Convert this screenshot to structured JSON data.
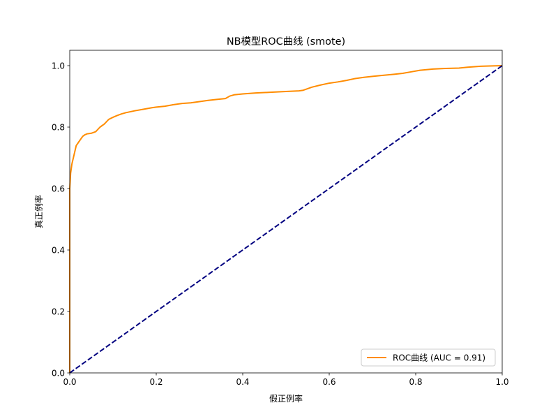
{
  "chart_data": {
    "type": "line",
    "title": "NB模型ROC曲线 (smote)",
    "xlabel": "假正例率",
    "ylabel": "真正例率",
    "xlim": [
      0.0,
      1.0
    ],
    "ylim": [
      0.0,
      1.05
    ],
    "xticks": [
      0.0,
      0.2,
      0.4,
      0.6,
      0.8,
      1.0
    ],
    "yticks": [
      0.0,
      0.2,
      0.4,
      0.6,
      0.8,
      1.0
    ],
    "xtick_labels": [
      "0.0",
      "0.2",
      "0.4",
      "0.6",
      "0.8",
      "1.0"
    ],
    "ytick_labels": [
      "0.0",
      "0.2",
      "0.4",
      "0.6",
      "0.8",
      "1.0"
    ],
    "grid": false,
    "legend_position": "lower-right",
    "series": [
      {
        "name": "ROC曲线 (AUC = 0.91)",
        "color": "#ff8c00",
        "style": "solid",
        "x": [
          0.0,
          0.0,
          0.002,
          0.005,
          0.01,
          0.015,
          0.02,
          0.025,
          0.03,
          0.035,
          0.04,
          0.05,
          0.06,
          0.07,
          0.08,
          0.09,
          0.1,
          0.11,
          0.12,
          0.13,
          0.15,
          0.17,
          0.19,
          0.2,
          0.22,
          0.24,
          0.26,
          0.28,
          0.3,
          0.32,
          0.34,
          0.36,
          0.37,
          0.38,
          0.4,
          0.43,
          0.46,
          0.5,
          0.53,
          0.54,
          0.56,
          0.58,
          0.6,
          0.62,
          0.64,
          0.66,
          0.68,
          0.7,
          0.72,
          0.75,
          0.77,
          0.79,
          0.81,
          0.84,
          0.87,
          0.9,
          0.92,
          0.95,
          0.97,
          1.0
        ],
        "y": [
          0.0,
          0.6,
          0.65,
          0.68,
          0.71,
          0.74,
          0.75,
          0.76,
          0.77,
          0.775,
          0.778,
          0.78,
          0.785,
          0.8,
          0.81,
          0.825,
          0.832,
          0.838,
          0.843,
          0.847,
          0.853,
          0.858,
          0.863,
          0.865,
          0.868,
          0.873,
          0.877,
          0.879,
          0.883,
          0.887,
          0.89,
          0.893,
          0.901,
          0.905,
          0.908,
          0.911,
          0.913,
          0.916,
          0.918,
          0.92,
          0.93,
          0.937,
          0.943,
          0.947,
          0.952,
          0.958,
          0.962,
          0.965,
          0.968,
          0.972,
          0.975,
          0.98,
          0.985,
          0.989,
          0.991,
          0.992,
          0.995,
          0.998,
          0.999,
          1.0
        ]
      },
      {
        "name": "",
        "color": "#000080",
        "style": "dashed",
        "x": [
          0.0,
          1.0
        ],
        "y": [
          0.0,
          1.0
        ]
      }
    ]
  }
}
